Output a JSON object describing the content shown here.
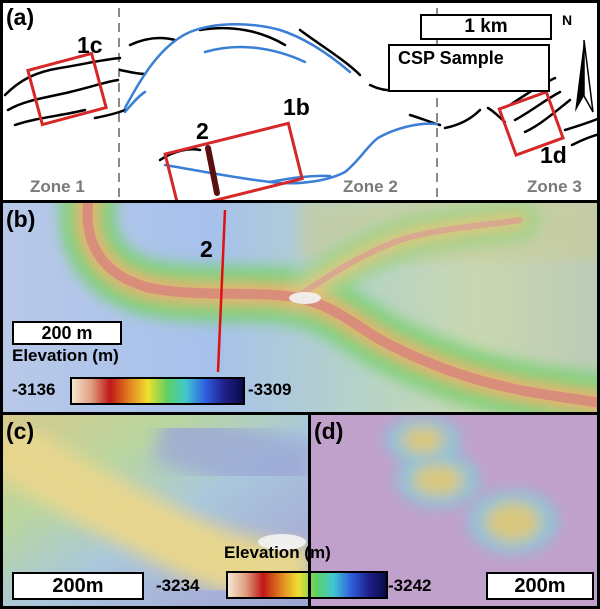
{
  "panel_a": {
    "label": "(a)",
    "callouts": [
      "1c",
      "2",
      "1b",
      "1d"
    ],
    "zones": [
      "Zone 1",
      "Zone 2",
      "Zone 3"
    ],
    "scale": "1 km",
    "legend": "CSP Sample",
    "north": "N"
  },
  "panel_b": {
    "label": "(b)",
    "profile_label": "2",
    "scale": "200 m",
    "elevation_title": "Elevation (m)",
    "elevation_high": "-3136",
    "elevation_low": "-3309"
  },
  "panel_c": {
    "label": "(c)",
    "scale": "200m",
    "elevation_high": "-3234"
  },
  "panel_d": {
    "label": "(d)",
    "scale": "200m",
    "elevation_title": "Elevation (m)",
    "elevation_low": "-3242"
  },
  "colors": {
    "box_red": "#d62828",
    "sample_blue": "#3a7fd5",
    "profile_red": "#e01010"
  }
}
